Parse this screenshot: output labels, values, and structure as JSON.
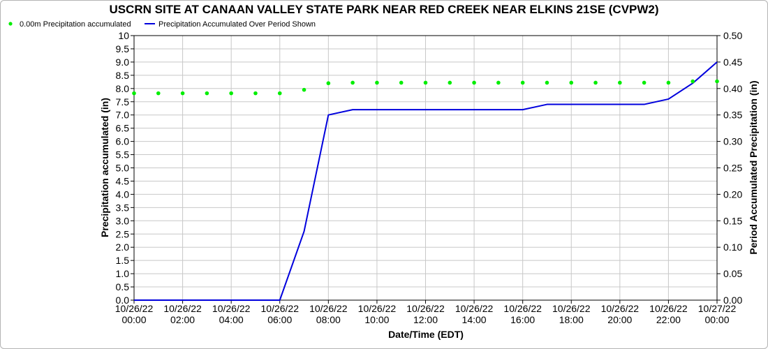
{
  "chart_data": {
    "type": "line",
    "title": "USCRN SITE AT CANAAN VALLEY STATE PARK NEAR RED CREEK NEAR ELKINS 21SE (CVPW2)",
    "xlabel": "Date/Time (EDT)",
    "ylabel_left": "Precipitation accumulated (in)",
    "ylabel_right": "Period Accumulated Precipitation (in)",
    "ylim_left": [
      0,
      10
    ],
    "ylim_right": [
      0,
      0.5
    ],
    "yticks_left": [
      "0.0",
      "0.5",
      "1.0",
      "1.5",
      "2.0",
      "2.5",
      "3.0",
      "3.5",
      "4.0",
      "4.5",
      "5.0",
      "5.5",
      "6.0",
      "6.5",
      "7.0",
      "7.5",
      "8.0",
      "8.5",
      "9.0",
      "9.5",
      "10"
    ],
    "yticks_right": [
      "0.00",
      "0.05",
      "0.10",
      "0.15",
      "0.20",
      "0.25",
      "0.30",
      "0.35",
      "0.40",
      "0.45",
      "0.50"
    ],
    "xlim_hours": [
      0,
      24
    ],
    "xticks": [
      {
        "hour": 0,
        "date": "10/26/22",
        "time": "00:00"
      },
      {
        "hour": 2,
        "date": "10/26/22",
        "time": "02:00"
      },
      {
        "hour": 4,
        "date": "10/26/22",
        "time": "04:00"
      },
      {
        "hour": 6,
        "date": "10/26/22",
        "time": "06:00"
      },
      {
        "hour": 8,
        "date": "10/26/22",
        "time": "08:00"
      },
      {
        "hour": 10,
        "date": "10/26/22",
        "time": "10:00"
      },
      {
        "hour": 12,
        "date": "10/26/22",
        "time": "12:00"
      },
      {
        "hour": 14,
        "date": "10/26/22",
        "time": "14:00"
      },
      {
        "hour": 16,
        "date": "10/26/22",
        "time": "16:00"
      },
      {
        "hour": 18,
        "date": "10/26/22",
        "time": "18:00"
      },
      {
        "hour": 20,
        "date": "10/26/22",
        "time": "20:00"
      },
      {
        "hour": 22,
        "date": "10/26/22",
        "time": "22:00"
      },
      {
        "hour": 24,
        "date": "10/27/22",
        "time": "00:00"
      }
    ],
    "grid": true,
    "legend_position": "top-left",
    "series": [
      {
        "name": "0.00m Precipitation accumulated",
        "axis": "left",
        "style": "points",
        "color": "#00ee00",
        "x": [
          0,
          1,
          2,
          3,
          4,
          5,
          6,
          7,
          8,
          9,
          10,
          11,
          12,
          13,
          14,
          15,
          16,
          17,
          18,
          19,
          20,
          21,
          22,
          23,
          24
        ],
        "values": [
          7.82,
          7.82,
          7.82,
          7.82,
          7.82,
          7.82,
          7.82,
          7.95,
          8.2,
          8.22,
          8.22,
          8.22,
          8.22,
          8.22,
          8.22,
          8.22,
          8.22,
          8.22,
          8.22,
          8.22,
          8.22,
          8.22,
          8.22,
          8.27,
          8.27
        ]
      },
      {
        "name": "Precipitation Accumulated Over Period Shown",
        "axis": "right",
        "style": "line",
        "color": "#0000dd",
        "x": [
          0,
          1,
          2,
          3,
          4,
          5,
          6,
          7,
          8,
          9,
          10,
          11,
          12,
          13,
          14,
          15,
          16,
          17,
          18,
          19,
          20,
          21,
          22,
          23,
          24
        ],
        "values": [
          0,
          0,
          0,
          0,
          0,
          0,
          0,
          0.13,
          0.35,
          0.36,
          0.36,
          0.36,
          0.36,
          0.36,
          0.36,
          0.36,
          0.36,
          0.37,
          0.37,
          0.37,
          0.37,
          0.37,
          0.38,
          0.41,
          0.45
        ]
      }
    ]
  }
}
